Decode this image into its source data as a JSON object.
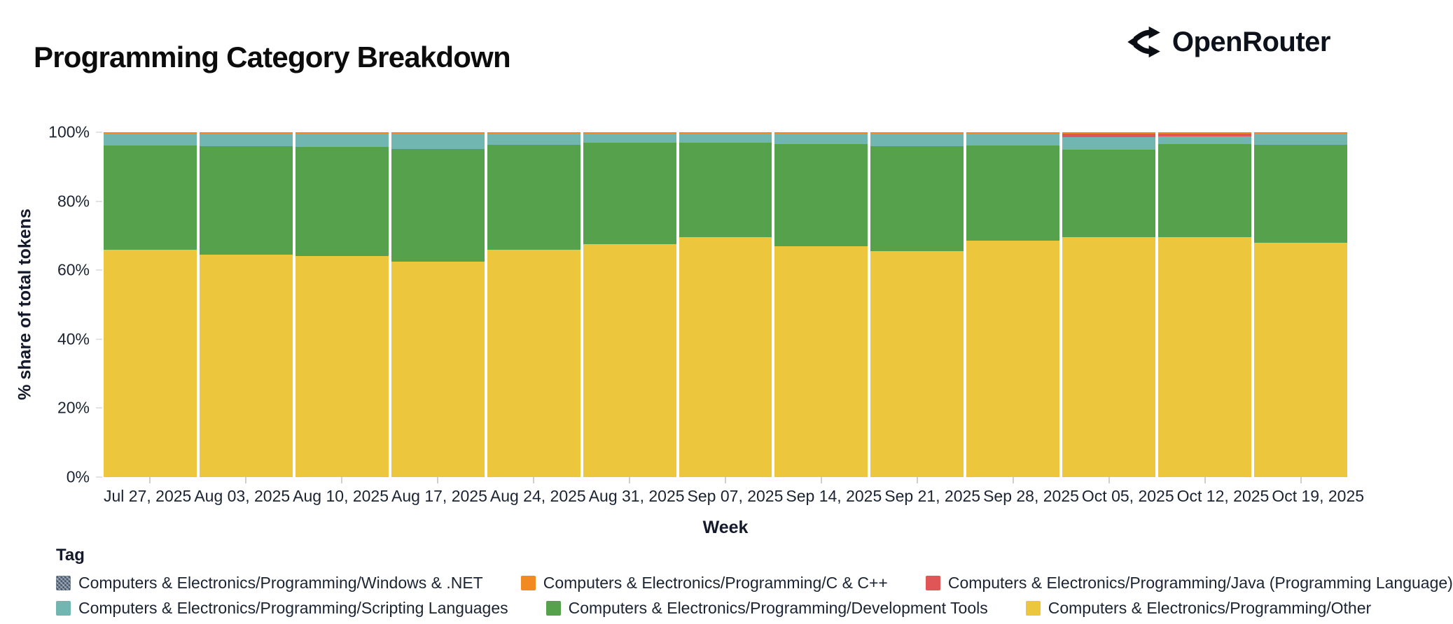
{
  "header": {
    "title": "Programming Category Breakdown",
    "brand": "OpenRouter"
  },
  "colors": {
    "text_dark": "#1b2433",
    "windows_net": "#47596e",
    "c_cpp": "#f18a21",
    "java": "#e05555",
    "scripting": "#72b6b1",
    "dev_tools": "#55a14c",
    "other": "#ecc63d"
  },
  "chart_data": {
    "type": "bar",
    "stacked": true,
    "normalized": true,
    "title": "Programming Category Breakdown",
    "xlabel": "Week",
    "ylabel": "% share of total tokens",
    "ylim": [
      0,
      100
    ],
    "grid": false,
    "y_ticks": [
      "0%",
      "20%",
      "40%",
      "60%",
      "80%",
      "100%"
    ],
    "legend_title": "Tag",
    "legend_position": "bottom",
    "categories": [
      "Jul 27, 2025",
      "Aug 03, 2025",
      "Aug 10, 2025",
      "Aug 17, 2025",
      "Aug 24, 2025",
      "Aug 31, 2025",
      "Sep 07, 2025",
      "Sep 14, 2025",
      "Sep 21, 2025",
      "Sep 28, 2025",
      "Oct 05, 2025",
      "Oct 12, 2025",
      "Oct 19, 2025"
    ],
    "series": [
      {
        "name": "Computers & Electronics/Programming/Windows & .NET",
        "color": "#47596e",
        "pattern": "hatch",
        "values": [
          0.1,
          0.1,
          0.1,
          0.1,
          0.1,
          0.1,
          0.1,
          0.1,
          0.1,
          0.1,
          0.1,
          0.1,
          0.1
        ]
      },
      {
        "name": "Computers & Electronics/Programming/C & C++",
        "color": "#f18a21",
        "values": [
          0.3,
          0.3,
          0.3,
          0.3,
          0.3,
          0.3,
          0.3,
          0.3,
          0.3,
          0.3,
          0.3,
          0.3,
          0.3
        ]
      },
      {
        "name": "Computers & Electronics/Programming/Java (Programming Language)",
        "color": "#e05555",
        "values": [
          0,
          0,
          0,
          0,
          0,
          0,
          0,
          0,
          0,
          0,
          1.0,
          0.8,
          0
        ]
      },
      {
        "name": "Computers & Electronics/Programming/Scripting Languages",
        "color": "#72b6b1",
        "values": [
          3.4,
          3.6,
          3.9,
          4.4,
          3.3,
          2.6,
          2.6,
          3.0,
          3.7,
          3.4,
          3.6,
          2.2,
          3.3
        ]
      },
      {
        "name": "Computers & Electronics/Programming/Development Tools",
        "color": "#55a14c",
        "values": [
          30.2,
          31.5,
          31.7,
          32.7,
          30.3,
          29.5,
          27.5,
          29.6,
          30.4,
          27.7,
          25.5,
          27.1,
          28.3
        ]
      },
      {
        "name": "Computers & Electronics/Programming/Other",
        "color": "#ecc63d",
        "values": [
          66.0,
          64.5,
          64.0,
          62.5,
          66.0,
          67.5,
          69.5,
          67.0,
          65.5,
          68.5,
          69.5,
          69.5,
          68.0
        ]
      }
    ]
  }
}
